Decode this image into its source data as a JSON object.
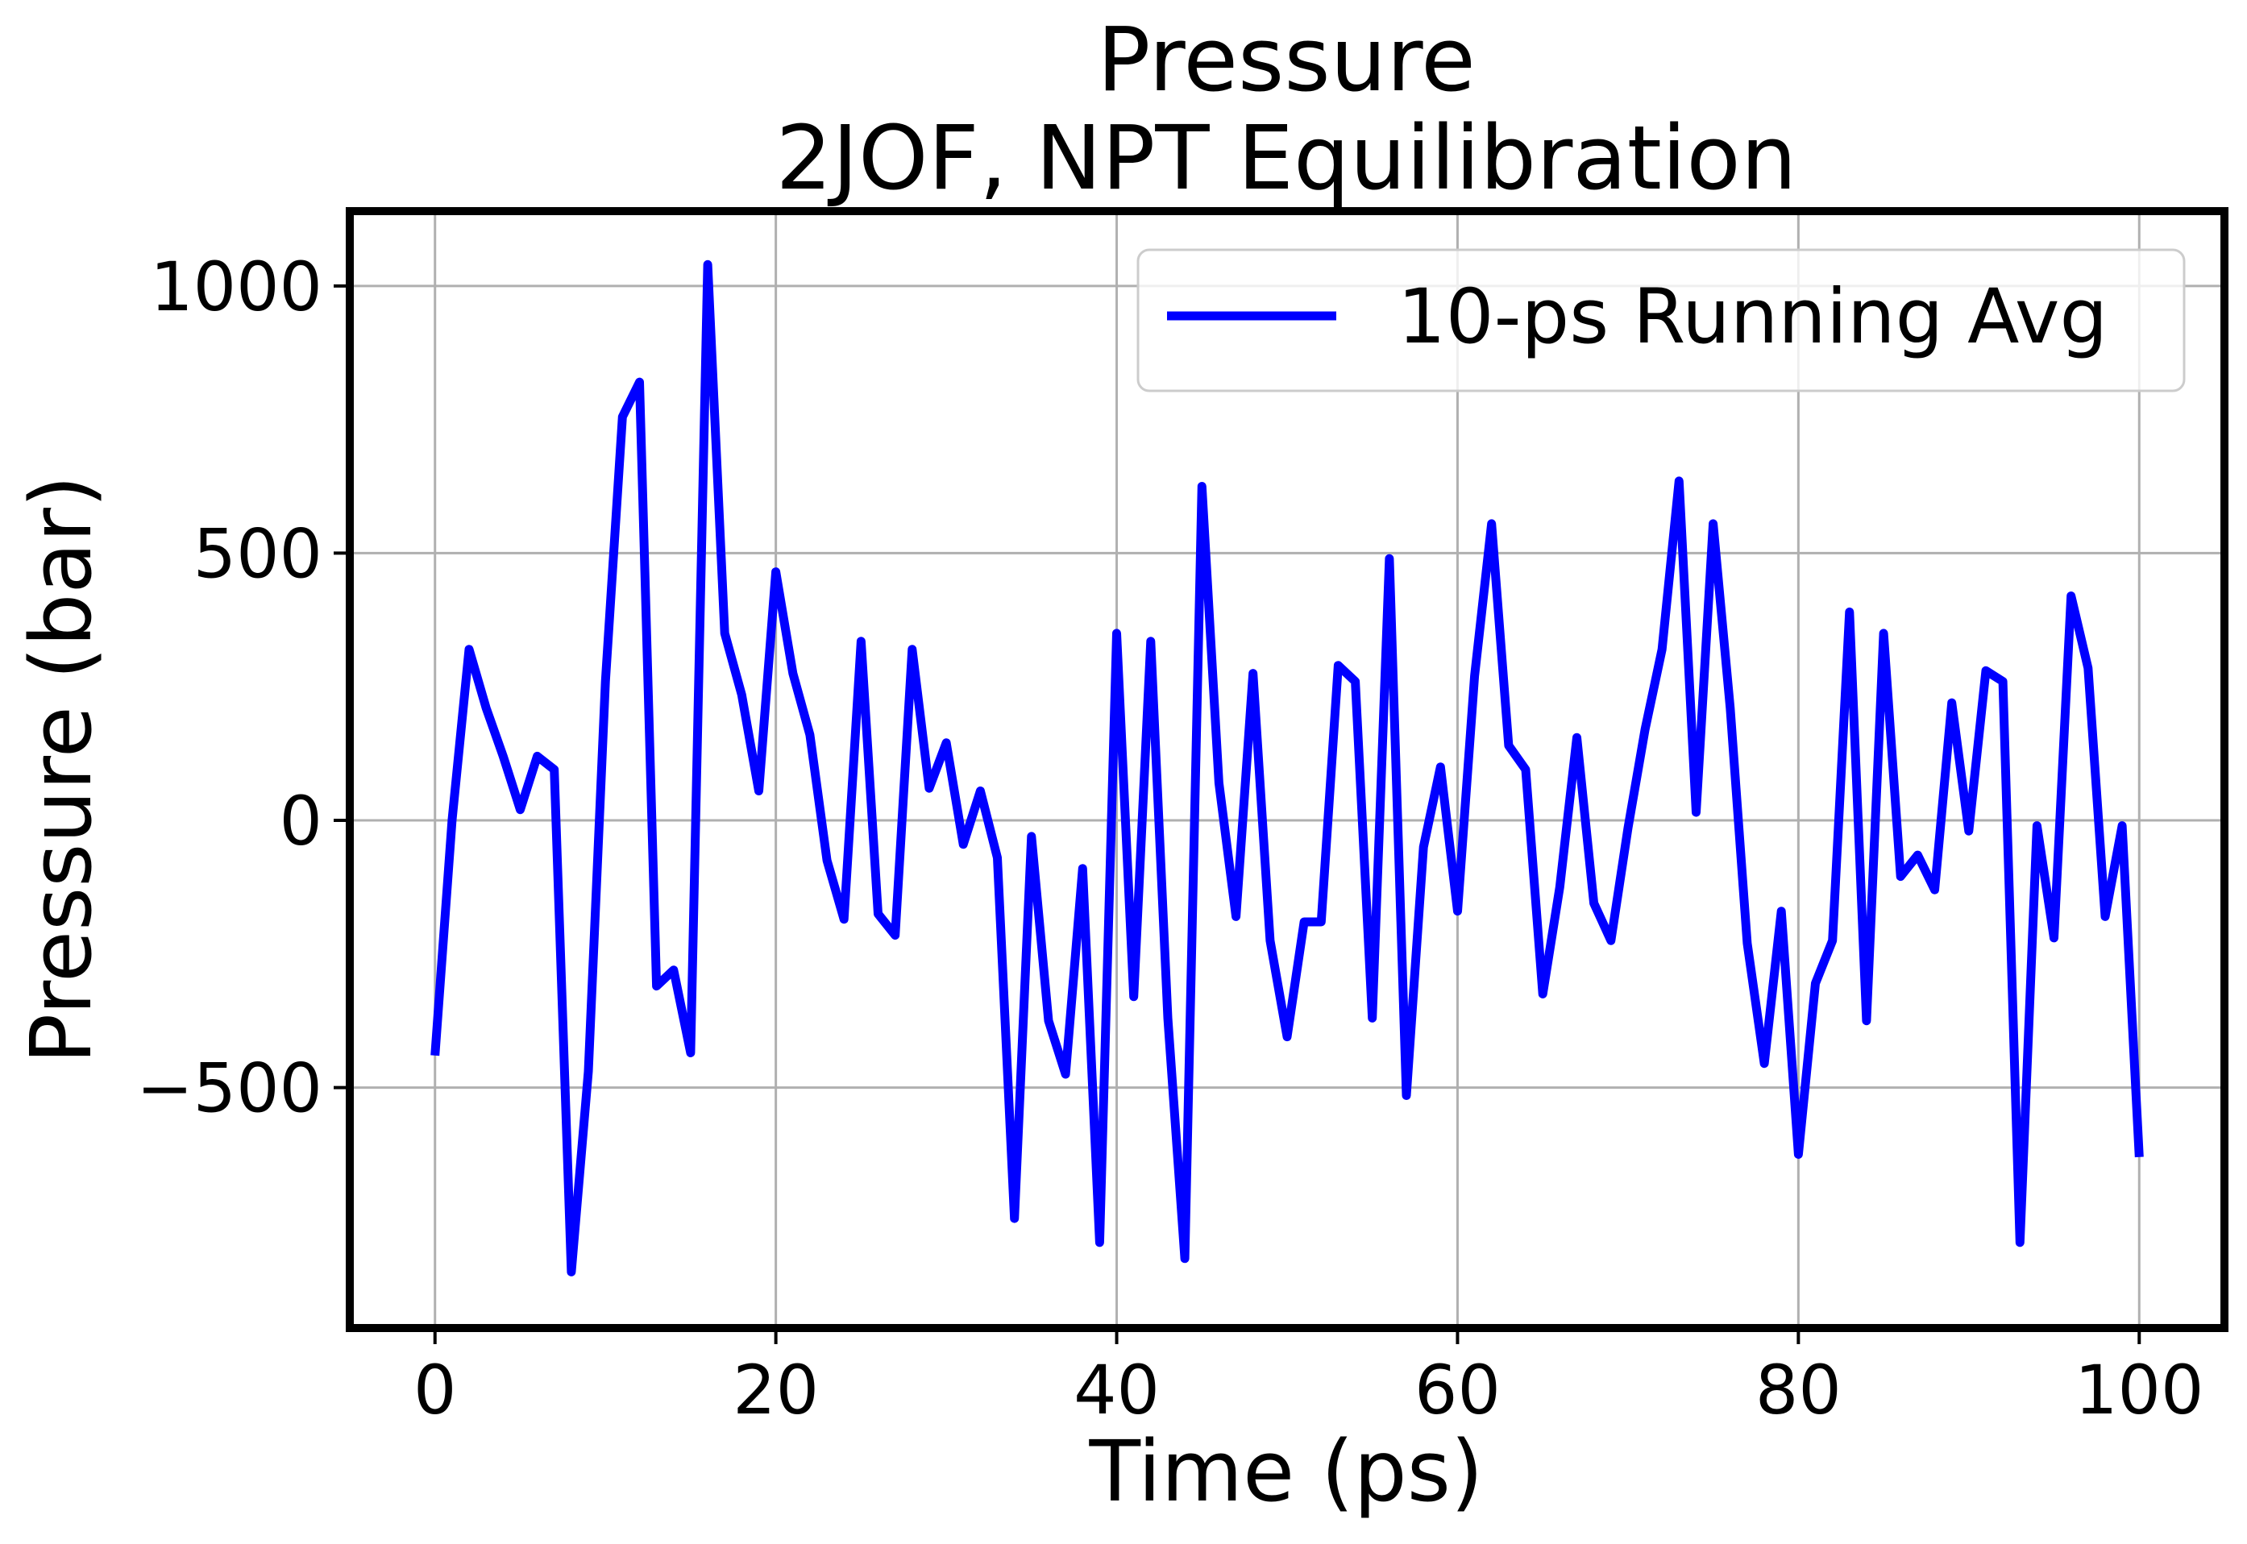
{
  "chart_data": {
    "type": "line",
    "title": "Pressure",
    "subtitle": "2JOF, NPT Equilibration",
    "xlabel": "Time (ps)",
    "ylabel": "Pressure (bar)",
    "xlim": [
      -5,
      105
    ],
    "ylim": [
      -950,
      1140
    ],
    "xticks": [
      0,
      20,
      40,
      60,
      80,
      100
    ],
    "yticks": [
      -500,
      0,
      500,
      1000
    ],
    "xtick_labels": [
      "0",
      "20",
      "40",
      "60",
      "80",
      "100"
    ],
    "ytick_labels": [
      "−500",
      "0",
      "500",
      "1000"
    ],
    "grid": true,
    "legend_position": "top-right",
    "series": [
      {
        "name": "10-ps Running Avg",
        "color": "#0000ff",
        "x": [
          0,
          1,
          2,
          3,
          4,
          5,
          6,
          7,
          8,
          9,
          10,
          11,
          12,
          13,
          14,
          15,
          16,
          17,
          18,
          19,
          20,
          21,
          22,
          23,
          24,
          25,
          26,
          27,
          28,
          29,
          30,
          31,
          32,
          33,
          34,
          35,
          36,
          37,
          38,
          39,
          40,
          41,
          42,
          43,
          44,
          45,
          46,
          47,
          48,
          49,
          50,
          51,
          52,
          53,
          54,
          55,
          56,
          57,
          58,
          59,
          60,
          61,
          62,
          63,
          64,
          65,
          66,
          67,
          68,
          69,
          70,
          71,
          72,
          73,
          74,
          75,
          76,
          77,
          78,
          79,
          80,
          81,
          82,
          83,
          84,
          85,
          86,
          87,
          88,
          89,
          90,
          91,
          92,
          93,
          94,
          95,
          96,
          97,
          98,
          99,
          100
        ],
        "values": [
          -440,
          0,
          320,
          210,
          120,
          20,
          120,
          95,
          -845,
          -470,
          260,
          755,
          820,
          -310,
          -280,
          -435,
          1040,
          350,
          235,
          55,
          465,
          275,
          160,
          -75,
          -185,
          335,
          -175,
          -215,
          320,
          60,
          145,
          -45,
          55,
          -70,
          -745,
          -30,
          -375,
          -475,
          -90,
          -790,
          350,
          -330,
          335,
          -370,
          -820,
          625,
          70,
          -180,
          275,
          -225,
          -405,
          -190,
          -190,
          290,
          260,
          -370,
          490,
          -515,
          -50,
          100,
          -170,
          270,
          555,
          140,
          95,
          -325,
          -125,
          155,
          -155,
          -225,
          -15,
          170,
          320,
          635,
          15,
          555,
          210,
          -230,
          -455,
          -170,
          -625,
          -305,
          -225,
          390,
          -375,
          350,
          -105,
          -65,
          -130,
          220,
          -20,
          280,
          260,
          -790,
          -10,
          -220,
          420,
          285,
          -180,
          -10,
          -630
        ]
      }
    ]
  }
}
